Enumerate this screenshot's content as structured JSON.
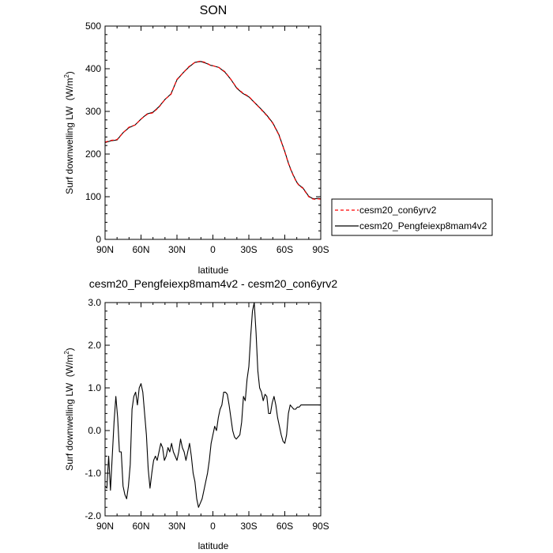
{
  "chart_data": [
    {
      "type": "line",
      "title": "SON",
      "xlabel": "latitude",
      "ylabel": "Surf downwelling LW",
      "ylabel_units_pre": "(W/m",
      "ylabel_units_sup": "2",
      "ylabel_units_post": ")",
      "xlim": [
        90,
        -90
      ],
      "ylim": [
        0,
        500
      ],
      "xticks": [
        90,
        60,
        30,
        0,
        -30,
        -60,
        -90
      ],
      "xtick_labels": [
        "90N",
        "60N",
        "30N",
        "0",
        "30S",
        "60S",
        "90S"
      ],
      "yticks": [
        0,
        100,
        200,
        300,
        400,
        500
      ],
      "ytick_labels": [
        "0",
        "100",
        "200",
        "300",
        "400",
        "500"
      ],
      "legend_position": "right",
      "x": [
        90,
        85,
        80,
        75,
        70,
        65,
        60,
        55,
        50,
        45,
        40,
        35,
        30,
        25,
        20,
        15,
        10,
        5,
        2,
        0,
        -5,
        -10,
        -15,
        -20,
        -25,
        -30,
        -35,
        -40,
        -45,
        -50,
        -55,
        -60,
        -63,
        -65,
        -67,
        -70,
        -72,
        -75,
        -78,
        -80,
        -83,
        -85,
        -88,
        -90
      ],
      "series": [
        {
          "name": "cesm20_con6yrv2",
          "color": "#ff0000",
          "dash": "dashed",
          "y": [
            228,
            232,
            234,
            250,
            263,
            268,
            282,
            293,
            297,
            310,
            328,
            340,
            375,
            390,
            405,
            415,
            418,
            413,
            408,
            407,
            403,
            393,
            375,
            355,
            343,
            335,
            320,
            305,
            290,
            272,
            245,
            205,
            178,
            163,
            150,
            133,
            126,
            120,
            108,
            100,
            95,
            94,
            95,
            94
          ]
        },
        {
          "name": "cesm20_Pengfeiexp8mam4v2",
          "color": "#000000",
          "dash": "solid",
          "y": [
            227,
            231,
            233,
            250,
            262,
            268,
            282,
            294,
            298,
            311,
            328,
            341,
            374,
            390,
            404,
            415,
            417,
            412,
            408,
            407,
            403,
            392,
            375,
            354,
            342,
            334,
            320,
            306,
            291,
            273,
            246,
            206,
            179,
            164,
            151,
            134,
            127,
            121,
            109,
            101,
            96,
            95,
            96,
            95
          ]
        }
      ]
    },
    {
      "type": "line",
      "title": "cesm20_Pengfeiexp8mam4v2 - cesm20_con6yrv2",
      "xlabel": "latitude",
      "ylabel": "Surf downwelling LW",
      "ylabel_units_pre": "(W/m",
      "ylabel_units_sup": "2",
      "ylabel_units_post": ")",
      "xlim": [
        90,
        -90
      ],
      "ylim": [
        -2.0,
        3.0
      ],
      "xticks": [
        90,
        60,
        30,
        0,
        -30,
        -60,
        -90
      ],
      "xtick_labels": [
        "90N",
        "60N",
        "30N",
        "0",
        "30S",
        "60S",
        "90S"
      ],
      "yticks": [
        -2,
        -1,
        0,
        1,
        2,
        3
      ],
      "ytick_labels": [
        "-2.0",
        "-1.0",
        "0.0",
        "1.0",
        "2.0",
        "3.0"
      ],
      "x": [
        90,
        88.5,
        87,
        85.5,
        84,
        82.5,
        81,
        79.5,
        78,
        76.5,
        75,
        73.5,
        72,
        70.5,
        69,
        67.5,
        66,
        64.5,
        63,
        61.5,
        60,
        58.5,
        57,
        55.5,
        54,
        52.5,
        51,
        49.5,
        48,
        46.5,
        45,
        43.5,
        42,
        40.5,
        39,
        37.5,
        36,
        34.5,
        33,
        31.5,
        30,
        28.5,
        27,
        25.5,
        24,
        22.5,
        21,
        19.5,
        18,
        16.5,
        15,
        13.5,
        12,
        10.5,
        9,
        7.5,
        6,
        4.5,
        3,
        1.5,
        0,
        -1.5,
        -3,
        -4.5,
        -6,
        -7.5,
        -9,
        -10.5,
        -12,
        -13.5,
        -15,
        -16.5,
        -18,
        -19.5,
        -21,
        -22.5,
        -24,
        -25.5,
        -27,
        -28.5,
        -30,
        -31.5,
        -33,
        -34.5,
        -36,
        -37.5,
        -39,
        -40.5,
        -42,
        -43.5,
        -45,
        -46.5,
        -48,
        -49.5,
        -51,
        -52.5,
        -54,
        -55.5,
        -57,
        -58.5,
        -60,
        -61.5,
        -63,
        -64.5,
        -66,
        -67.5,
        -69,
        -70.5,
        -72,
        -73.5,
        -75,
        -76.5,
        -78,
        -79.5,
        -81,
        -82.5,
        -84,
        -85.5,
        -87,
        -88.5,
        -90
      ],
      "series": [
        {
          "name": "",
          "color": "#000000",
          "dash": "solid",
          "y": [
            -1.3,
            -1.35,
            -0.6,
            -1.4,
            -0.6,
            0.2,
            0.8,
            0.3,
            -0.5,
            -0.5,
            -1.3,
            -1.5,
            -1.6,
            -1.3,
            -0.8,
            0.5,
            0.8,
            0.9,
            0.6,
            1.0,
            1.1,
            0.9,
            0.4,
            -0.1,
            -0.9,
            -1.35,
            -1.0,
            -0.7,
            -0.6,
            -0.7,
            -0.5,
            -0.3,
            -0.4,
            -0.7,
            -0.6,
            -0.4,
            -0.5,
            -0.3,
            -0.5,
            -0.6,
            -0.7,
            -0.5,
            -0.2,
            -0.4,
            -0.5,
            -0.7,
            -0.5,
            -0.3,
            -0.6,
            -1.0,
            -1.2,
            -1.6,
            -1.8,
            -1.7,
            -1.6,
            -1.4,
            -1.2,
            -1.0,
            -0.7,
            -0.3,
            -0.1,
            0.1,
            0.0,
            0.3,
            0.5,
            0.6,
            0.9,
            0.9,
            0.85,
            0.6,
            0.3,
            0.0,
            -0.15,
            -0.2,
            -0.15,
            -0.1,
            0.2,
            0.8,
            0.7,
            1.2,
            1.5,
            2.2,
            2.8,
            3.0,
            2.3,
            1.4,
            1.0,
            0.9,
            0.7,
            0.85,
            0.8,
            0.4,
            0.4,
            0.65,
            0.8,
            0.6,
            0.3,
            0.1,
            -0.1,
            -0.25,
            -0.3,
            -0.1,
            0.4,
            0.6,
            0.55,
            0.5,
            0.5,
            0.55,
            0.55,
            0.6,
            0.6,
            0.6,
            0.6,
            0.6,
            0.6,
            0.6,
            0.6,
            0.6,
            0.6,
            0.6,
            0.6
          ]
        }
      ]
    }
  ]
}
